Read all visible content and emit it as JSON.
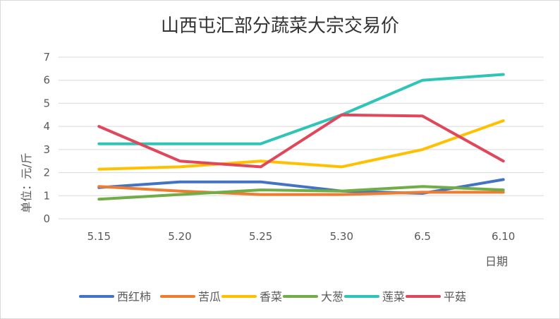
{
  "chart_data": {
    "type": "line",
    "title": "山西屯汇部分蔬菜大宗交易价",
    "xlabel": "日期",
    "ylabel": "单位：元/斤",
    "ylim": [
      0,
      7
    ],
    "yticks": [
      "0",
      "1",
      "2",
      "3",
      "4",
      "5",
      "6",
      "7"
    ],
    "categories": [
      "5.15",
      "5.20",
      "5.25",
      "5.30",
      "6.5",
      "6.10"
    ],
    "grid": true,
    "legend_position": "bottom",
    "series": [
      {
        "name": "西红柿",
        "color": "#4472C4",
        "values": [
          1.35,
          1.6,
          1.6,
          1.2,
          1.1,
          1.7
        ]
      },
      {
        "name": "苦瓜",
        "color": "#ED7D31",
        "values": [
          1.4,
          1.2,
          1.05,
          1.05,
          1.15,
          1.15
        ]
      },
      {
        "name": "香菜",
        "color": "#FFC000",
        "values": [
          2.15,
          2.25,
          2.5,
          2.25,
          3.0,
          4.25
        ]
      },
      {
        "name": "大葱",
        "color": "#70AD47",
        "values": [
          0.85,
          1.05,
          1.25,
          1.2,
          1.4,
          1.25
        ]
      },
      {
        "name": "莲菜",
        "color": "#2EC4B6",
        "values": [
          3.25,
          3.25,
          3.25,
          4.5,
          6.0,
          6.25
        ]
      },
      {
        "name": "平菇",
        "color": "#E0475B",
        "values": [
          4.0,
          2.5,
          2.25,
          4.5,
          4.45,
          2.5
        ]
      }
    ]
  }
}
